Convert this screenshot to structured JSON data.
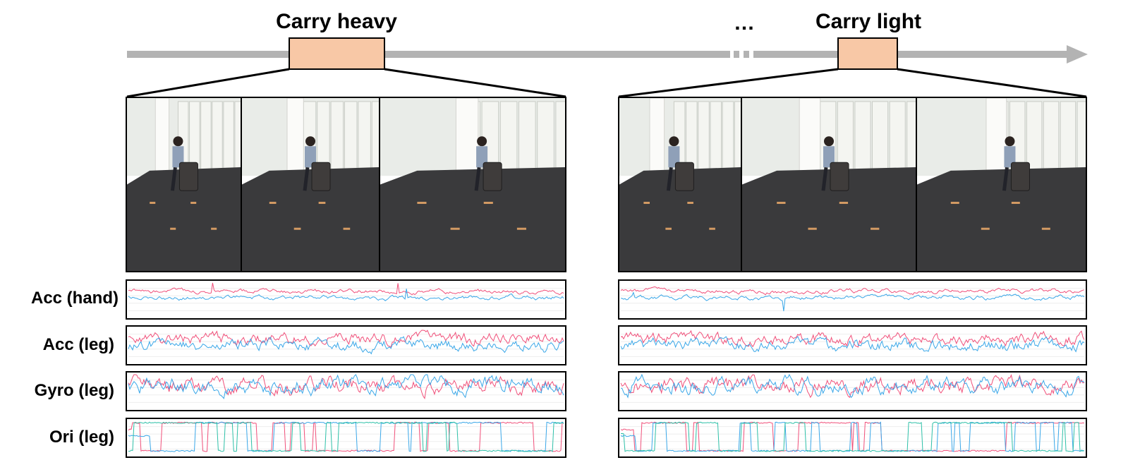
{
  "activities": [
    {
      "label": "Carry heavy"
    },
    {
      "label": "Carry light"
    }
  ],
  "ellipsis": "…",
  "sensor_rows": [
    {
      "label": "Acc (hand)"
    },
    {
      "label": "Acc (leg)"
    },
    {
      "label": "Gyro (leg)"
    },
    {
      "label": "Ori (leg)"
    }
  ],
  "colors": {
    "timeline": "#b3b3b3",
    "segment_fill": "#f8c8a6",
    "series_x": "#f0507a",
    "series_y": "#3aa7e8",
    "series_z": "#2ec0a8",
    "floor": "#3a3a3c",
    "wall": "#e9ece8"
  }
}
